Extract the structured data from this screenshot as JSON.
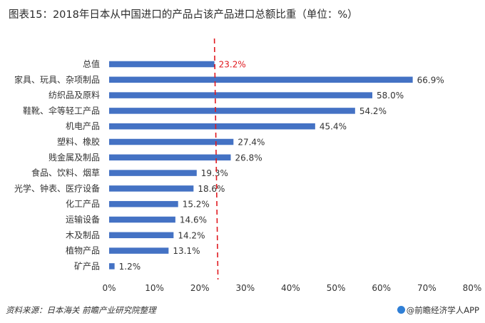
{
  "title": "图表15：2018年日本从中国进口的产品占该产品进口总额比重（单位：%）",
  "footer": {
    "source": "资料来源：日本海关 前瞻产业研究院整理",
    "brand": "@前瞻经济学人APP"
  },
  "colors": {
    "bar": "#4472c4",
    "reference_line": "#e0191f",
    "reference_label": "#e0191f"
  },
  "chart_data": {
    "type": "bar",
    "orientation": "horizontal",
    "categories": [
      "总值",
      "家具、玩具、杂项制品",
      "纺织品及原料",
      "鞋靴、伞等轻工产品",
      "机电产品",
      "塑料、橡胶",
      "贱金属及制品",
      "食品、饮料、烟草",
      "光学、钟表、医疗设备",
      "化工产品",
      "运输设备",
      "木及制品",
      "植物产品",
      "矿产品"
    ],
    "values": [
      23.2,
      66.9,
      58.0,
      54.2,
      45.4,
      27.4,
      26.8,
      19.3,
      18.6,
      15.2,
      14.6,
      14.2,
      13.1,
      1.2
    ],
    "value_labels": [
      "23.2%",
      "66.9%",
      "58.0%",
      "54.2%",
      "45.4%",
      "27.4%",
      "26.8%",
      "19.3%",
      "18.6%",
      "15.2%",
      "14.6%",
      "14.2%",
      "13.1%",
      "1.2%"
    ],
    "xlim": [
      0,
      80
    ],
    "x_ticks": [
      0,
      10,
      20,
      30,
      40,
      50,
      60,
      70,
      80
    ],
    "x_tick_labels": [
      "0%",
      "10%",
      "20%",
      "30%",
      "40%",
      "50%",
      "60%",
      "70%",
      "80%"
    ],
    "reference_line": {
      "value": 23.2,
      "style": "dashed"
    },
    "highlight_label_index": 0,
    "grid": false,
    "legend": "none"
  }
}
